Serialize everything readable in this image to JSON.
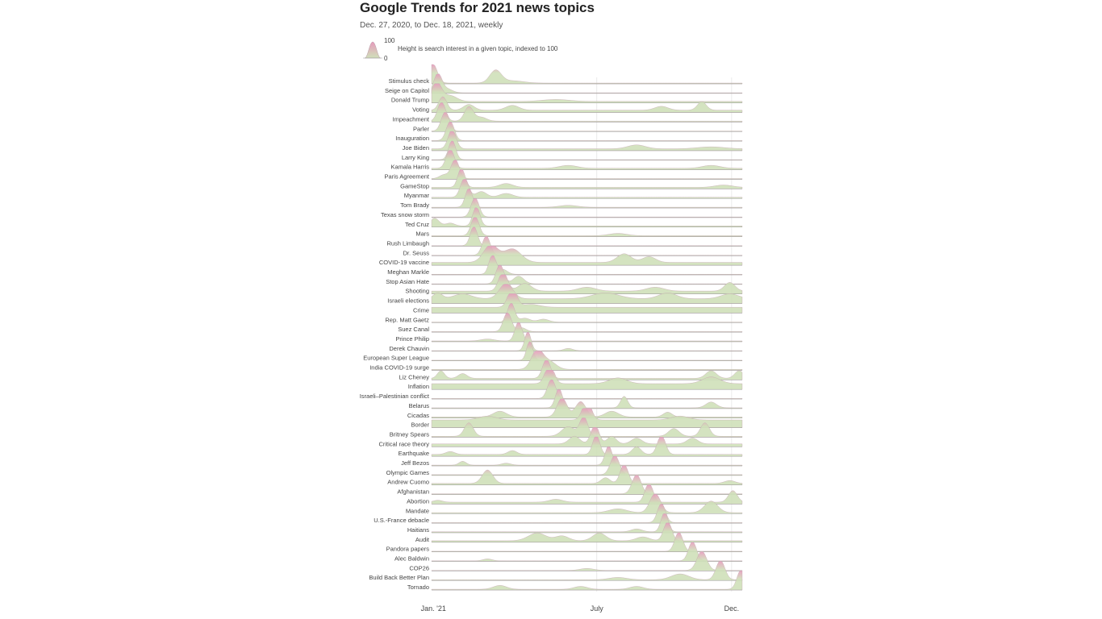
{
  "chart_data": {
    "type": "ridgeline",
    "title": "Google Trends for 2021 news topics",
    "subtitle": "Dec. 27, 2020, to Dec. 18, 2021, weekly",
    "legend": {
      "max_label": "100",
      "min_label": "0",
      "description": "Height is search interest in a given topic, indexed to 100"
    },
    "x_ticks": [
      {
        "label": "Jan. '21",
        "week": 0.3
      },
      {
        "label": "July",
        "week": 26.6
      },
      {
        "label": "Dec.",
        "week": 48.3
      }
    ],
    "x_range_weeks": [
      0,
      50
    ],
    "y_range": [
      0,
      100
    ],
    "colors": {
      "low": "#cfe0b9",
      "high": "#e79bbd",
      "baseline": "#999999",
      "grid": "#dddddd"
    },
    "series": [
      {
        "name": "Stimulus check",
        "base": 4,
        "peaks": [
          [
            0.2,
            100,
            1.0
          ],
          [
            10.3,
            65,
            1.3
          ],
          [
            13,
            12,
            2.5
          ]
        ]
      },
      {
        "name": "Seige on Capitol",
        "base": 3,
        "peaks": [
          [
            1.0,
            100,
            0.9
          ],
          [
            2.5,
            20,
            1.2
          ]
        ]
      },
      {
        "name": "Donald Trump",
        "base": 8,
        "peaks": [
          [
            0.8,
            100,
            1.1
          ],
          [
            3,
            30,
            1.5
          ],
          [
            20,
            10,
            3
          ]
        ]
      },
      {
        "name": "Voting",
        "base": 12,
        "peaks": [
          [
            1.8,
            70,
            0.9
          ],
          [
            6,
            30,
            1.2
          ],
          [
            13,
            25,
            1.5
          ],
          [
            43.5,
            45,
            1.0
          ],
          [
            37,
            20,
            1.5
          ]
        ]
      },
      {
        "name": "Impeachment",
        "base": 5,
        "peaks": [
          [
            1.6,
            100,
            0.9
          ],
          [
            6,
            75,
            1.0
          ],
          [
            8,
            20,
            1.2
          ]
        ]
      },
      {
        "name": "Parler",
        "base": 3,
        "peaks": [
          [
            2.2,
            100,
            0.9
          ]
        ]
      },
      {
        "name": "Inauguration",
        "base": 3,
        "peaks": [
          [
            3.0,
            100,
            0.9
          ]
        ]
      },
      {
        "name": "Joe Biden",
        "base": 10,
        "peaks": [
          [
            3.3,
            100,
            0.9
          ],
          [
            33,
            20,
            2
          ],
          [
            45,
            10,
            3
          ]
        ]
      },
      {
        "name": "Larry King",
        "base": 3,
        "peaks": [
          [
            3.3,
            100,
            0.8
          ]
        ]
      },
      {
        "name": "Kamala Harris",
        "base": 8,
        "peaks": [
          [
            3.0,
            100,
            0.9
          ],
          [
            22,
            15,
            2
          ],
          [
            45,
            15,
            2
          ]
        ]
      },
      {
        "name": "Paris Agreement",
        "base": 4,
        "peaks": [
          [
            3.8,
            100,
            0.9
          ],
          [
            2,
            20,
            1
          ]
        ]
      },
      {
        "name": "GameStop",
        "base": 8,
        "peaks": [
          [
            4.8,
            100,
            0.8
          ],
          [
            12,
            20,
            1.5
          ],
          [
            47,
            12,
            2
          ]
        ]
      },
      {
        "name": "Myanmar",
        "base": 6,
        "peaks": [
          [
            5.3,
            100,
            0.9
          ],
          [
            8,
            30,
            1.2
          ],
          [
            12,
            20,
            1.5
          ]
        ]
      },
      {
        "name": "Tom Brady",
        "base": 4,
        "peaks": [
          [
            6.0,
            100,
            0.8
          ],
          [
            22,
            10,
            2
          ]
        ]
      },
      {
        "name": "Texas snow storm",
        "base": 3,
        "peaks": [
          [
            7.0,
            100,
            0.9
          ]
        ]
      },
      {
        "name": "Ted Cruz",
        "base": 6,
        "peaks": [
          [
            7.2,
            100,
            0.8
          ],
          [
            0.5,
            40,
            1
          ],
          [
            3,
            15,
            1
          ]
        ]
      },
      {
        "name": "Mars",
        "base": 5,
        "peaks": [
          [
            7.0,
            100,
            0.9
          ],
          [
            30,
            12,
            2
          ]
        ]
      },
      {
        "name": "Rush Limbaugh",
        "base": 3,
        "peaks": [
          [
            6.8,
            100,
            0.8
          ]
        ]
      },
      {
        "name": "Dr. Seuss",
        "base": 3,
        "peaks": [
          [
            8.8,
            100,
            0.9
          ]
        ]
      },
      {
        "name": "COVID-19 vaccine",
        "base": 15,
        "peaks": [
          [
            9.5,
            90,
            1.6
          ],
          [
            13,
            70,
            2.0
          ],
          [
            31,
            45,
            1.6
          ],
          [
            35,
            30,
            1.5
          ]
        ]
      },
      {
        "name": "Meghan Markle",
        "base": 3,
        "peaks": [
          [
            9.8,
            100,
            0.8
          ],
          [
            11.5,
            25,
            1
          ]
        ]
      },
      {
        "name": "Stop Asian Hate",
        "base": 3,
        "peaks": [
          [
            11.0,
            100,
            0.9
          ],
          [
            14,
            40,
            1.2
          ]
        ]
      },
      {
        "name": "Shooting",
        "base": 15,
        "peaks": [
          [
            11.5,
            100,
            1.0
          ],
          [
            15,
            40,
            1.5
          ],
          [
            48,
            45,
            1.2
          ],
          [
            25,
            20,
            2
          ],
          [
            36,
            20,
            2
          ]
        ]
      },
      {
        "name": "Israeli elections",
        "base": 25,
        "peaks": [
          [
            12,
            80,
            1.5
          ],
          [
            1,
            30,
            1
          ],
          [
            5,
            25,
            2
          ],
          [
            28,
            30,
            3
          ],
          [
            38,
            30,
            2
          ],
          [
            48,
            25,
            2
          ]
        ]
      },
      {
        "name": "Crime",
        "base": 30,
        "peaks": [
          [
            13,
            100,
            1.0
          ],
          [
            16,
            15,
            2
          ]
        ]
      },
      {
        "name": "Rep. Matt Gaetz",
        "base": 3,
        "peaks": [
          [
            12.8,
            100,
            0.8
          ],
          [
            15,
            20,
            1.2
          ],
          [
            18,
            15,
            1.2
          ]
        ]
      },
      {
        "name": "Suez Canal",
        "base": 3,
        "peaks": [
          [
            12.2,
            100,
            0.9
          ],
          [
            14.5,
            20,
            1
          ]
        ]
      },
      {
        "name": "Prince Philip",
        "base": 4,
        "peaks": [
          [
            14.0,
            100,
            0.8
          ],
          [
            9,
            10,
            1.5
          ]
        ]
      },
      {
        "name": "Derek Chauvin",
        "base": 3,
        "peaks": [
          [
            15.5,
            100,
            0.7
          ],
          [
            22,
            12,
            1
          ]
        ]
      },
      {
        "name": "European Super League",
        "base": 3,
        "peaks": [
          [
            15.8,
            100,
            0.7
          ]
        ]
      },
      {
        "name": "India COVID-19 surge",
        "base": 5,
        "peaks": [
          [
            17,
            100,
            1.3
          ],
          [
            19,
            40,
            1.5
          ]
        ]
      },
      {
        "name": "Liz Cheney",
        "base": 8,
        "peaks": [
          [
            18.5,
            100,
            0.9
          ],
          [
            1.5,
            40,
            0.8
          ],
          [
            5,
            25,
            1
          ],
          [
            45,
            40,
            1.2
          ],
          [
            49.5,
            40,
            1.0
          ]
        ]
      },
      {
        "name": "Inflation",
        "base": 30,
        "peaks": [
          [
            19,
            100,
            1.0
          ],
          [
            30,
            30,
            2
          ],
          [
            45,
            35,
            2
          ]
        ]
      },
      {
        "name": "Israeli–Palestinian conflict",
        "base": 3,
        "peaks": [
          [
            19.3,
            100,
            0.9
          ]
        ]
      },
      {
        "name": "Belarus",
        "base": 4,
        "peaks": [
          [
            20.5,
            100,
            0.8
          ],
          [
            31,
            60,
            0.8
          ],
          [
            45,
            30,
            1.2
          ]
        ]
      },
      {
        "name": "Cicadas",
        "base": 6,
        "peaks": [
          [
            21,
            100,
            1.1
          ],
          [
            24,
            80,
            1.2
          ],
          [
            11,
            30,
            1.5
          ],
          [
            29,
            30,
            1.5
          ],
          [
            38,
            25,
            1
          ]
        ]
      },
      {
        "name": "Border",
        "base": 40,
        "peaks": [
          [
            25,
            100,
            1.0
          ],
          [
            9,
            20,
            2
          ],
          [
            40,
            20,
            2
          ]
        ]
      },
      {
        "name": "Britney Spears",
        "base": 5,
        "peaks": [
          [
            24.5,
            100,
            0.9
          ],
          [
            6,
            70,
            1.0
          ],
          [
            22,
            50,
            1.5
          ],
          [
            39,
            40,
            1.2
          ],
          [
            44,
            70,
            1.0
          ]
        ]
      },
      {
        "name": "Critical race theory",
        "base": 15,
        "peaks": [
          [
            26.3,
            100,
            0.9
          ],
          [
            23,
            40,
            1.2
          ],
          [
            29,
            40,
            1
          ],
          [
            33,
            30,
            1.2
          ],
          [
            42,
            30,
            1.2
          ]
        ]
      },
      {
        "name": "Earthquake",
        "base": 10,
        "peaks": [
          [
            26.5,
            100,
            0.8
          ],
          [
            37,
            100,
            0.9
          ],
          [
            33,
            40,
            1
          ],
          [
            13,
            20,
            1
          ],
          [
            3,
            15,
            1
          ]
        ]
      },
      {
        "name": "Jeff Bezos",
        "base": 4,
        "peaks": [
          [
            28.5,
            100,
            0.8
          ],
          [
            5,
            20,
            0.8
          ],
          [
            12,
            10,
            1
          ]
        ]
      },
      {
        "name": "Olympic Games",
        "base": 4,
        "peaks": [
          [
            29.5,
            100,
            1.0
          ]
        ]
      },
      {
        "name": "Andrew Cuomo",
        "base": 8,
        "peaks": [
          [
            31,
            100,
            0.9
          ],
          [
            9,
            70,
            1.2
          ],
          [
            28,
            30,
            1
          ],
          [
            48,
            15,
            1.2
          ]
        ]
      },
      {
        "name": "Afghanistan",
        "base": 4,
        "peaks": [
          [
            33,
            100,
            1.0
          ]
        ]
      },
      {
        "name": "Abortion",
        "base": 10,
        "peaks": [
          [
            35,
            100,
            0.9
          ],
          [
            48.5,
            60,
            1.0
          ],
          [
            20,
            15,
            1.5
          ],
          [
            1,
            10,
            1
          ]
        ]
      },
      {
        "name": "Mandate",
        "base": 5,
        "peaks": [
          [
            36,
            100,
            1.2
          ],
          [
            45,
            60,
            1.5
          ],
          [
            30,
            20,
            2
          ]
        ]
      },
      {
        "name": "U.S.-France debacle",
        "base": 3,
        "peaks": [
          [
            37,
            100,
            0.9
          ]
        ]
      },
      {
        "name": "Haitians",
        "base": 5,
        "peaks": [
          [
            37.5,
            100,
            0.8
          ],
          [
            33,
            15,
            1.2
          ]
        ]
      },
      {
        "name": "Audit",
        "base": 8,
        "peaks": [
          [
            38,
            100,
            0.9
          ],
          [
            17,
            40,
            2.0
          ],
          [
            27,
            40,
            1.5
          ],
          [
            21,
            25,
            1.5
          ],
          [
            34,
            20,
            1.5
          ]
        ]
      },
      {
        "name": "Pandora papers",
        "base": 3,
        "peaks": [
          [
            39.8,
            100,
            0.9
          ]
        ]
      },
      {
        "name": "Alec Baldwin",
        "base": 3,
        "peaks": [
          [
            42,
            100,
            0.9
          ],
          [
            9,
            10,
            1
          ]
        ]
      },
      {
        "name": "COP26",
        "base": 3,
        "peaks": [
          [
            43.5,
            100,
            1.1
          ],
          [
            25,
            10,
            1.5
          ]
        ]
      },
      {
        "name": "Build Back Better Plan",
        "base": 4,
        "peaks": [
          [
            46.5,
            100,
            1.0
          ],
          [
            40,
            30,
            2.0
          ],
          [
            30,
            12,
            2.0
          ]
        ]
      },
      {
        "name": "Tornado",
        "base": 4,
        "peaks": [
          [
            49.8,
            100,
            0.9
          ],
          [
            11,
            20,
            1.5
          ],
          [
            24,
            15,
            1.5
          ],
          [
            33,
            15,
            1.5
          ]
        ]
      }
    ]
  }
}
